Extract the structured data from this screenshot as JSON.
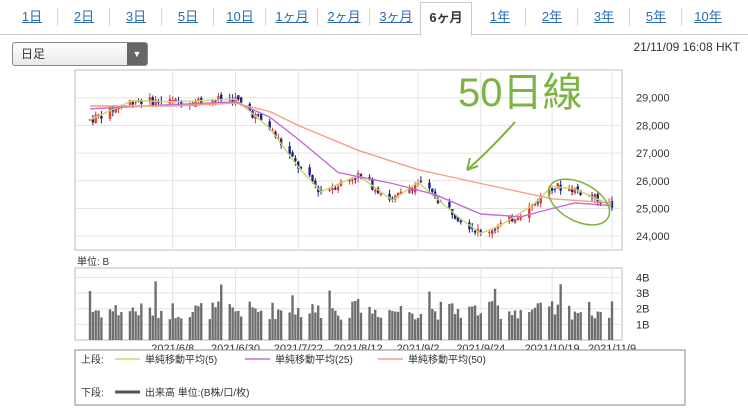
{
  "tabs": [
    {
      "label": "1日",
      "active": false
    },
    {
      "label": "2日",
      "active": false
    },
    {
      "label": "3日",
      "active": false
    },
    {
      "label": "5日",
      "active": false
    },
    {
      "label": "10日",
      "active": false
    },
    {
      "label": "1ヶ月",
      "active": false
    },
    {
      "label": "2ヶ月",
      "active": false
    },
    {
      "label": "3ヶ月",
      "active": false
    },
    {
      "label": "6ヶ月",
      "active": true
    },
    {
      "label": "1年",
      "active": false
    },
    {
      "label": "2年",
      "active": false
    },
    {
      "label": "3年",
      "active": false
    },
    {
      "label": "5年",
      "active": false
    },
    {
      "label": "10年",
      "active": false
    }
  ],
  "dropdown": {
    "selected": "日足",
    "icon": "chevron-down-icon"
  },
  "timestamp": "21/11/09 16:08 HKT",
  "chart_data": {
    "type": "candlestick",
    "y_ticks": [
      "29,000",
      "28,000",
      "27,000",
      "26,000",
      "25,000",
      "24,000"
    ],
    "ylim": [
      23500,
      30000
    ],
    "x_ticks": [
      "2021/6/8",
      "2021/6/30",
      "2021/7/22",
      "2021/8/12",
      "2021/9/2",
      "2021/9/24",
      "2021/10/19",
      "2021/11/9"
    ],
    "x_range": [
      "2021/5/10",
      "2021/11/9"
    ],
    "annotation": "50日線",
    "annotation_color": "#7cb342",
    "up_color": "#e53935",
    "down_color": "#1a237e",
    "ma": [
      {
        "name": "単純移動平均(5)",
        "color": "#c5d96b",
        "points": [
          [
            "2021/5/10",
            28200
          ],
          [
            "2021/5/25",
            28900
          ],
          [
            "2021/6/8",
            28850
          ],
          [
            "2021/6/30",
            28950
          ],
          [
            "2021/7/12",
            27900
          ],
          [
            "2021/7/22",
            26500
          ],
          [
            "2021/7/30",
            25600
          ],
          [
            "2021/8/12",
            26200
          ],
          [
            "2021/8/24",
            25300
          ],
          [
            "2021/9/2",
            25950
          ],
          [
            "2021/9/16",
            24700
          ],
          [
            "2021/9/24",
            24100
          ],
          [
            "2021/10/1",
            24400
          ],
          [
            "2021/10/12",
            25100
          ],
          [
            "2021/10/19",
            25800
          ],
          [
            "2021/10/27",
            25700
          ],
          [
            "2021/11/9",
            25100
          ]
        ]
      },
      {
        "name": "単純移動平均(25)",
        "color": "#c56bd9",
        "points": [
          [
            "2021/5/10",
            28600
          ],
          [
            "2021/6/8",
            28750
          ],
          [
            "2021/6/30",
            28850
          ],
          [
            "2021/7/12",
            28300
          ],
          [
            "2021/7/22",
            27500
          ],
          [
            "2021/8/5",
            26300
          ],
          [
            "2021/8/24",
            25900
          ],
          [
            "2021/9/8",
            25500
          ],
          [
            "2021/9/24",
            24800
          ],
          [
            "2021/10/8",
            24700
          ],
          [
            "2021/10/19",
            25000
          ],
          [
            "2021/10/27",
            25200
          ],
          [
            "2021/11/9",
            25100
          ]
        ]
      },
      {
        "name": "単純移動平均(50)",
        "color": "#f2a088",
        "points": [
          [
            "2021/5/10",
            28700
          ],
          [
            "2021/6/8",
            28700
          ],
          [
            "2021/6/30",
            28800
          ],
          [
            "2021/7/12",
            28500
          ],
          [
            "2021/7/22",
            28000
          ],
          [
            "2021/8/12",
            27100
          ],
          [
            "2021/9/2",
            26400
          ],
          [
            "2021/9/24",
            25900
          ],
          [
            "2021/10/19",
            25350
          ],
          [
            "2021/11/9",
            25200
          ]
        ]
      }
    ],
    "volume": {
      "unit_label": "単位: B",
      "y_ticks": [
        "4B",
        "3B",
        "2B",
        "1B"
      ],
      "ylim": [
        0,
        4.6
      ]
    },
    "legend": {
      "upper_label": "上段:",
      "lower_label": "下段:",
      "items": [
        "単純移動平均(5)",
        "単純移動平均(25)",
        "単純移動平均(50)"
      ],
      "volume_item": "出来高 単位:(B株/口/枚)"
    }
  }
}
